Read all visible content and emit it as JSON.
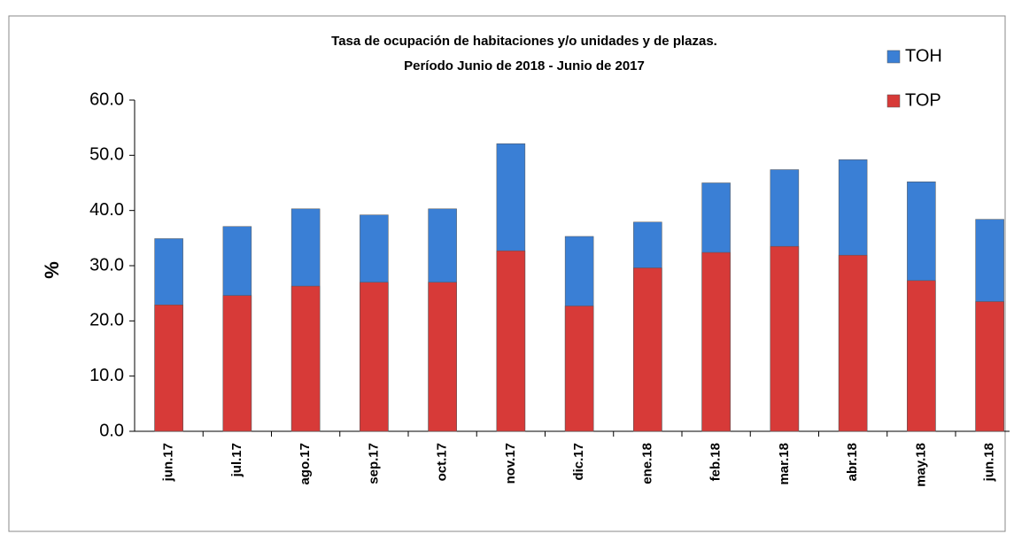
{
  "chart_data": {
    "type": "bar",
    "title": [
      "Tasa  de ocupación de habitaciones y/o unidades y de plazas.",
      "Período  Junio  de 2018 -  Junio de 2017"
    ],
    "ylabel": "%",
    "categories": [
      "jun.17",
      "jul.17",
      "ago.17",
      "sep.17",
      "oct.17",
      "nov.17",
      "dic.17",
      "ene.18",
      "feb.18",
      "mar.18",
      "abr.18",
      "may.18",
      "jun.18"
    ],
    "series": [
      {
        "name": "TOH",
        "color": "#3a7fd5",
        "values": [
          34.9,
          37.1,
          40.3,
          39.2,
          40.3,
          52.1,
          35.3,
          37.9,
          45.0,
          47.4,
          49.2,
          45.2,
          38.4
        ]
      },
      {
        "name": "TOP",
        "color": "#d73a38",
        "values": [
          22.9,
          24.6,
          26.3,
          27.0,
          27.0,
          32.7,
          22.7,
          29.6,
          32.4,
          33.5,
          31.9,
          27.3,
          23.5
        ]
      }
    ],
    "ylim": [
      0,
      60
    ],
    "yticks": [
      {
        "value": 0,
        "label": "0.0"
      },
      {
        "value": 10,
        "label": "10.0"
      },
      {
        "value": 20,
        "label": "20.0"
      },
      {
        "value": 30,
        "label": "30.0"
      },
      {
        "value": 40,
        "label": "40.0"
      },
      {
        "value": 50,
        "label": "50.0"
      },
      {
        "value": 60,
        "label": "60.0"
      }
    ],
    "legend": "top-right"
  }
}
